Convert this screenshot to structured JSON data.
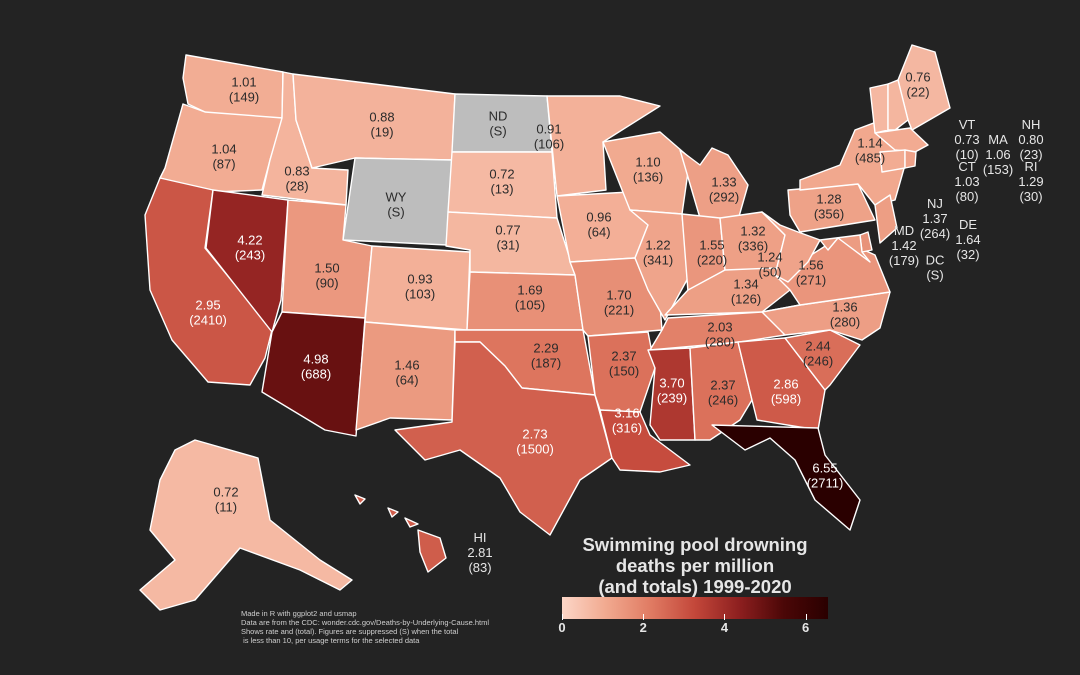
{
  "title_lines": [
    "Swimming pool drowning",
    "deaths per million",
    "(and totals) 1999-2020"
  ],
  "legend": {
    "ticks": [
      "0",
      "2",
      "4",
      "6"
    ],
    "min": 0,
    "max": 6.55
  },
  "credits": [
    "Made in R with ggplot2 and usmap",
    "Data are from the CDC: wonder.cdc.gov/Deaths-by-Underlying-Cause.html",
    "Shows rate and (total). Figures are suppressed (S) when the total",
    " is less than 10, per usage terms for the selected data"
  ],
  "colors": {
    "background": "#232323",
    "suppressed": "#bdbdbd",
    "low": "#fcd6c7",
    "high": "#2a0000"
  },
  "states": [
    {
      "id": "WA",
      "rate": "1.01",
      "total": "(149)"
    },
    {
      "id": "OR",
      "rate": "1.04",
      "total": "(87)"
    },
    {
      "id": "CA",
      "rate": "2.95",
      "total": "(2410)"
    },
    {
      "id": "NV",
      "rate": "4.22",
      "total": "(243)"
    },
    {
      "id": "ID",
      "rate": "0.83",
      "total": "(28)"
    },
    {
      "id": "MT",
      "rate": "0.88",
      "total": "(19)"
    },
    {
      "id": "WY",
      "name": "WY",
      "rate": "",
      "total": "(S)",
      "suppressed": true
    },
    {
      "id": "UT",
      "rate": "1.50",
      "total": "(90)"
    },
    {
      "id": "AZ",
      "rate": "4.98",
      "total": "(688)"
    },
    {
      "id": "CO",
      "rate": "0.93",
      "total": "(103)"
    },
    {
      "id": "NM",
      "rate": "1.46",
      "total": "(64)"
    },
    {
      "id": "ND",
      "name": "ND",
      "rate": "",
      "total": "(S)",
      "suppressed": true
    },
    {
      "id": "SD",
      "rate": "0.72",
      "total": "(13)"
    },
    {
      "id": "NE",
      "rate": "0.77",
      "total": "(31)"
    },
    {
      "id": "KS",
      "rate": "1.69",
      "total": "(105)"
    },
    {
      "id": "OK",
      "rate": "2.29",
      "total": "(187)"
    },
    {
      "id": "TX",
      "rate": "2.73",
      "total": "(1500)"
    },
    {
      "id": "MN",
      "rate": "0.91",
      "total": "(106)"
    },
    {
      "id": "IA",
      "rate": "0.96",
      "total": "(64)"
    },
    {
      "id": "MO",
      "rate": "1.70",
      "total": "(221)"
    },
    {
      "id": "AR",
      "rate": "2.37",
      "total": "(150)"
    },
    {
      "id": "LA",
      "rate": "3.16",
      "total": "(316)"
    },
    {
      "id": "WI",
      "rate": "1.10",
      "total": "(136)"
    },
    {
      "id": "IL",
      "rate": "1.22",
      "total": "(341)"
    },
    {
      "id": "MI",
      "rate": "1.33",
      "total": "(292)"
    },
    {
      "id": "IN",
      "rate": "1.55",
      "total": "(220)"
    },
    {
      "id": "OH",
      "rate": "1.32",
      "total": "(336)"
    },
    {
      "id": "KY",
      "rate": "1.34",
      "total": "(126)"
    },
    {
      "id": "TN",
      "rate": "2.03",
      "total": "(280)"
    },
    {
      "id": "MS",
      "rate": "3.70",
      "total": "(239)"
    },
    {
      "id": "AL",
      "rate": "2.37",
      "total": "(246)"
    },
    {
      "id": "GA",
      "rate": "2.86",
      "total": "(598)"
    },
    {
      "id": "FL",
      "rate": "6.55",
      "total": "(2711)"
    },
    {
      "id": "SC",
      "rate": "2.44",
      "total": "(246)"
    },
    {
      "id": "NC",
      "rate": "1.36",
      "total": "(280)"
    },
    {
      "id": "VA",
      "rate": "1.56",
      "total": "(271)"
    },
    {
      "id": "WV",
      "rate": "1.24",
      "total": "(50)"
    },
    {
      "id": "PA",
      "rate": "1.28",
      "total": "(356)"
    },
    {
      "id": "NY",
      "rate": "1.14",
      "total": "(485)"
    },
    {
      "id": "ME",
      "rate": "0.76",
      "total": "(22)"
    },
    {
      "id": "AK",
      "rate": "0.72",
      "total": "(11)"
    },
    {
      "id": "HI",
      "name": "HI",
      "rate": "2.81",
      "total": "(83)",
      "outside": true
    },
    {
      "id": "VT",
      "name": "VT",
      "rate": "0.73",
      "total": "(10)",
      "outside": true
    },
    {
      "id": "NH",
      "name": "NH",
      "rate": "0.80",
      "total": "(23)",
      "outside": true
    },
    {
      "id": "MA",
      "name": "MA",
      "rate": "1.06",
      "total": "(153)",
      "outside": true
    },
    {
      "id": "CT",
      "name": "CT",
      "rate": "1.03",
      "total": "(80)",
      "outside": true
    },
    {
      "id": "RI",
      "name": "RI",
      "rate": "1.29",
      "total": "(30)",
      "outside": true
    },
    {
      "id": "NJ",
      "name": "NJ",
      "rate": "1.37",
      "total": "(264)",
      "outside": true
    },
    {
      "id": "DE",
      "name": "DE",
      "rate": "1.64",
      "total": "(32)",
      "outside": true
    },
    {
      "id": "MD",
      "name": "MD",
      "rate": "1.42",
      "total": "(179)",
      "outside": true
    },
    {
      "id": "DC",
      "name": "DC",
      "rate": "",
      "total": "(S)",
      "outside": true,
      "suppressed": true
    }
  ]
}
